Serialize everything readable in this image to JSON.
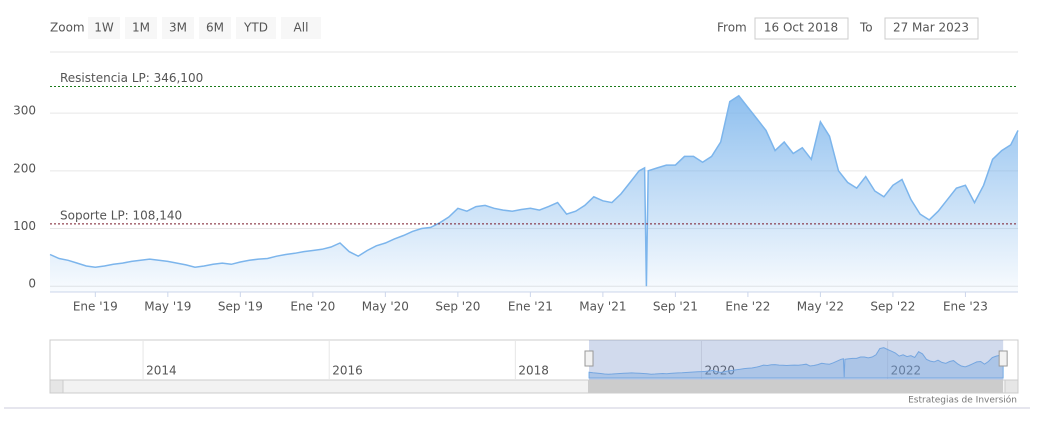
{
  "range_selector": {
    "zoom_label": "Zoom",
    "buttons": [
      "1W",
      "1M",
      "3M",
      "6M",
      "YTD",
      "All"
    ],
    "from_label": "From",
    "from": "16 Oct 2018",
    "to_label": "To",
    "to": "27 Mar 2023"
  },
  "chart_data": {
    "type": "area",
    "color": "#7cb5ec",
    "x": [
      -2.5,
      -2,
      -1.5,
      -1,
      -0.5,
      0,
      0.5,
      1,
      1.5,
      2,
      2.5,
      3,
      3.5,
      4,
      4.5,
      5,
      5.5,
      6,
      6.5,
      7,
      7.5,
      8,
      8.5,
      9,
      9.5,
      10,
      10.5,
      11,
      11.5,
      12,
      12.5,
      13,
      13.5,
      14,
      14.5,
      15,
      15.5,
      16,
      16.5,
      17,
      17.5,
      18,
      18.5,
      19,
      19.5,
      20,
      20.5,
      21,
      21.5,
      22,
      22.5,
      23,
      23.5,
      24,
      24.5,
      25,
      25.5,
      26,
      26.5,
      27,
      27.5,
      28,
      28.5,
      29,
      29.5,
      30,
      30.3,
      30.4,
      30.5,
      31,
      31.5,
      32,
      32.5,
      33,
      33.5,
      34,
      34.5,
      35,
      35.5,
      36,
      36.5,
      37,
      37.5,
      38,
      38.5,
      39,
      39.5,
      40,
      40.5,
      41,
      41.5,
      42,
      42.5,
      43,
      43.5,
      44,
      44.5,
      45,
      45.5,
      46,
      46.5,
      47,
      47.5,
      48,
      48.5,
      49,
      49.5,
      50,
      50.5,
      50.9
    ],
    "values": [
      55,
      48,
      45,
      40,
      35,
      33,
      35,
      38,
      40,
      43,
      45,
      47,
      45,
      43,
      40,
      37,
      33,
      35,
      38,
      40,
      38,
      42,
      45,
      47,
      48,
      52,
      55,
      57,
      60,
      62,
      64,
      68,
      75,
      60,
      52,
      62,
      70,
      75,
      82,
      88,
      95,
      100,
      102,
      110,
      120,
      135,
      130,
      138,
      140,
      135,
      132,
      130,
      133,
      135,
      132,
      138,
      145,
      125,
      130,
      140,
      155,
      148,
      145,
      160,
      180,
      200,
      205,
      0,
      200,
      205,
      210,
      210,
      225,
      225,
      215,
      225,
      250,
      320,
      330,
      310,
      290,
      270,
      235,
      250,
      230,
      240,
      220,
      285,
      260,
      200,
      180,
      170,
      190,
      165,
      155,
      175,
      185,
      150,
      125,
      115,
      130,
      150,
      170,
      175,
      145,
      175,
      220,
      235,
      245,
      270
    ],
    "xlim": [
      -2.5,
      50.9
    ],
    "xticks": [
      {
        "value": 0,
        "label": "Ene '19"
      },
      {
        "value": 4,
        "label": "May '19"
      },
      {
        "value": 8,
        "label": "Sep '19"
      },
      {
        "value": 12,
        "label": "Ene '20"
      },
      {
        "value": 16,
        "label": "May '20"
      },
      {
        "value": 20,
        "label": "Sep '20"
      },
      {
        "value": 24,
        "label": "Ene '21"
      },
      {
        "value": 28,
        "label": "May '21"
      },
      {
        "value": 32,
        "label": "Sep '21"
      },
      {
        "value": 36,
        "label": "Ene '22"
      },
      {
        "value": 40,
        "label": "May '22"
      },
      {
        "value": 44,
        "label": "Sep '22"
      },
      {
        "value": 48,
        "label": "Ene '23"
      }
    ],
    "ylim": [
      -10,
      360
    ],
    "yticks": [
      0,
      100,
      200,
      300
    ],
    "grid": true,
    "plot_lines": [
      {
        "label": "Resistencia LP: 346,100",
        "value": 346.1,
        "color": "#1a7a1a"
      },
      {
        "label": "Soporte LP: 108,140",
        "value": 108.14,
        "color": "#7a1a2a"
      }
    ]
  },
  "navigator": {
    "xlim": [
      2013,
      2023.24
    ],
    "xticks": [
      2014,
      2016,
      2018,
      2020,
      2022
    ]
  },
  "credits": "Estrategias de Inversión"
}
